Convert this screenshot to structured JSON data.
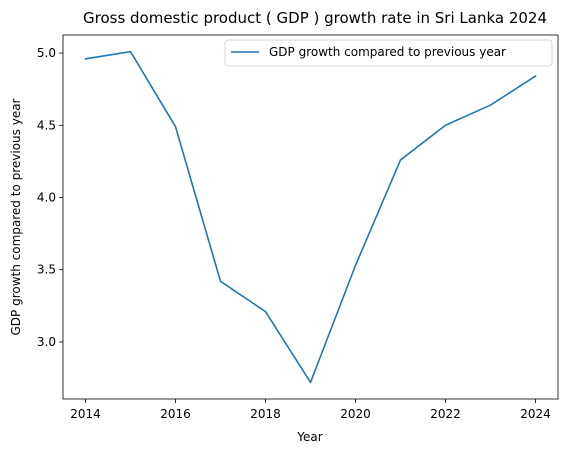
{
  "chart_data": {
    "type": "line",
    "title": "Gross domestic product ( GDP ) growth rate in Sri Lanka 2024",
    "xlabel": "Year",
    "ylabel": "GDP growth compared to previous year",
    "x": [
      2014,
      2015,
      2016,
      2017,
      2018,
      2019,
      2020,
      2021,
      2022,
      2023,
      2024
    ],
    "series": [
      {
        "name": "GDP growth compared to previous year",
        "values": [
          4.96,
          5.01,
          4.49,
          3.42,
          3.21,
          2.72,
          3.53,
          4.26,
          4.5,
          4.64,
          4.84
        ],
        "color": "#1f77b4"
      }
    ],
    "xlim": [
      2013.5,
      2024.5
    ],
    "ylim": [
      2.605,
      5.125
    ],
    "x_ticks": [
      2014,
      2016,
      2018,
      2020,
      2022,
      2024
    ],
    "y_ticks": [
      3.0,
      3.5,
      4.0,
      4.5,
      5.0
    ],
    "y_tick_labels": [
      "3.0",
      "3.5",
      "4.0",
      "4.5",
      "5.0"
    ],
    "grid": false,
    "legend_position": "upper right"
  }
}
